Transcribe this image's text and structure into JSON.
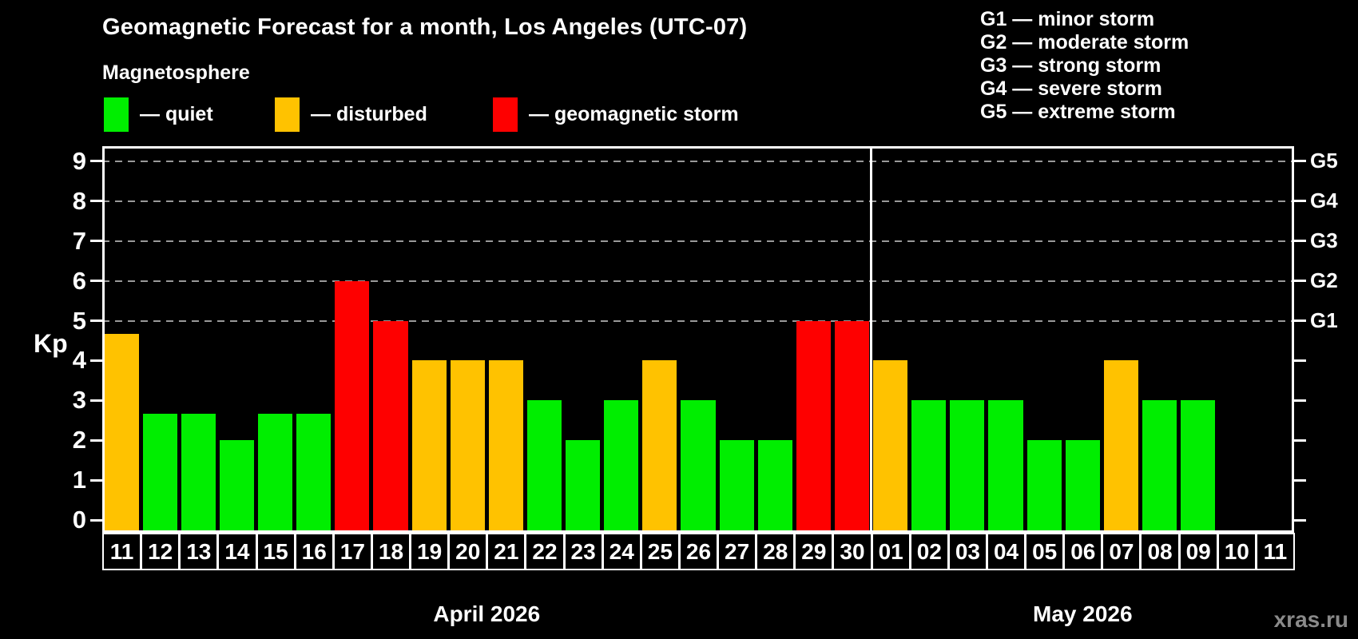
{
  "title": "Geomagnetic Forecast for a month, Los Angeles (UTC-07)",
  "subtitle": "Magnetosphere",
  "legend": {
    "quiet": {
      "label": "— quiet",
      "color": "#00ee00"
    },
    "disturbed": {
      "label": "— disturbed",
      "color": "#ffc200"
    },
    "storm": {
      "label": "— geomagnetic storm",
      "color": "#fe0000"
    }
  },
  "g_legend": [
    "G1 — minor storm",
    "G2 — moderate storm",
    "G3 — strong storm",
    "G4 — severe storm",
    "G5 — extreme storm"
  ],
  "watermark": "xras.ru",
  "chart_data": {
    "type": "bar",
    "title": "Geomagnetic Forecast for a month, Los Angeles (UTC-07)",
    "ylabel": "Kp",
    "ylim": [
      0,
      9
    ],
    "y_ticks": [
      0,
      1,
      2,
      3,
      4,
      5,
      6,
      7,
      8,
      9
    ],
    "gridlines_kp": [
      5,
      6,
      7,
      8,
      9
    ],
    "grid": "dashed horizontal at Kp 5-9",
    "legend_position": "top",
    "g_scale": [
      {
        "label": "G1",
        "kp": 5
      },
      {
        "label": "G2",
        "kp": 6
      },
      {
        "label": "G3",
        "kp": 7
      },
      {
        "label": "G4",
        "kp": 8
      },
      {
        "label": "G5",
        "kp": 9
      }
    ],
    "months": [
      {
        "label": "April 2026",
        "days": 20
      },
      {
        "label": "May 2026",
        "days": 11
      }
    ],
    "categories": [
      "11",
      "12",
      "13",
      "14",
      "15",
      "16",
      "17",
      "18",
      "19",
      "20",
      "21",
      "22",
      "23",
      "24",
      "25",
      "26",
      "27",
      "28",
      "29",
      "30",
      "01",
      "02",
      "03",
      "04",
      "05",
      "06",
      "07",
      "08",
      "09",
      "10",
      "11"
    ],
    "days": [
      {
        "day": "11",
        "month": "April 2026",
        "kp": 4.67,
        "status": "disturbed"
      },
      {
        "day": "12",
        "month": "April 2026",
        "kp": 2.67,
        "status": "quiet"
      },
      {
        "day": "13",
        "month": "April 2026",
        "kp": 2.67,
        "status": "quiet"
      },
      {
        "day": "14",
        "month": "April 2026",
        "kp": 2.0,
        "status": "quiet"
      },
      {
        "day": "15",
        "month": "April 2026",
        "kp": 2.67,
        "status": "quiet"
      },
      {
        "day": "16",
        "month": "April 2026",
        "kp": 2.67,
        "status": "quiet"
      },
      {
        "day": "17",
        "month": "April 2026",
        "kp": 6.0,
        "status": "storm"
      },
      {
        "day": "18",
        "month": "April 2026",
        "kp": 5.0,
        "status": "storm"
      },
      {
        "day": "19",
        "month": "April 2026",
        "kp": 4.0,
        "status": "disturbed"
      },
      {
        "day": "20",
        "month": "April 2026",
        "kp": 4.0,
        "status": "disturbed"
      },
      {
        "day": "21",
        "month": "April 2026",
        "kp": 4.0,
        "status": "disturbed"
      },
      {
        "day": "22",
        "month": "April 2026",
        "kp": 3.0,
        "status": "quiet"
      },
      {
        "day": "23",
        "month": "April 2026",
        "kp": 2.0,
        "status": "quiet"
      },
      {
        "day": "24",
        "month": "April 2026",
        "kp": 3.0,
        "status": "quiet"
      },
      {
        "day": "25",
        "month": "April 2026",
        "kp": 4.0,
        "status": "disturbed"
      },
      {
        "day": "26",
        "month": "April 2026",
        "kp": 3.0,
        "status": "quiet"
      },
      {
        "day": "27",
        "month": "April 2026",
        "kp": 2.0,
        "status": "quiet"
      },
      {
        "day": "28",
        "month": "April 2026",
        "kp": 2.0,
        "status": "quiet"
      },
      {
        "day": "29",
        "month": "April 2026",
        "kp": 5.0,
        "status": "storm"
      },
      {
        "day": "30",
        "month": "April 2026",
        "kp": 5.0,
        "status": "storm"
      },
      {
        "day": "01",
        "month": "May 2026",
        "kp": 4.0,
        "status": "disturbed"
      },
      {
        "day": "02",
        "month": "May 2026",
        "kp": 3.0,
        "status": "quiet"
      },
      {
        "day": "03",
        "month": "May 2026",
        "kp": 3.0,
        "status": "quiet"
      },
      {
        "day": "04",
        "month": "May 2026",
        "kp": 3.0,
        "status": "quiet"
      },
      {
        "day": "05",
        "month": "May 2026",
        "kp": 2.0,
        "status": "quiet"
      },
      {
        "day": "06",
        "month": "May 2026",
        "kp": 2.0,
        "status": "quiet"
      },
      {
        "day": "07",
        "month": "May 2026",
        "kp": 4.0,
        "status": "disturbed"
      },
      {
        "day": "08",
        "month": "May 2026",
        "kp": 3.0,
        "status": "quiet"
      },
      {
        "day": "09",
        "month": "May 2026",
        "kp": 3.0,
        "status": "quiet"
      },
      {
        "day": "10",
        "month": "May 2026",
        "kp": null,
        "status": "none"
      },
      {
        "day": "11",
        "month": "May 2026",
        "kp": null,
        "status": "none"
      }
    ],
    "colors": {
      "quiet": "#00ee00",
      "disturbed": "#ffc200",
      "storm": "#fe0000"
    }
  }
}
